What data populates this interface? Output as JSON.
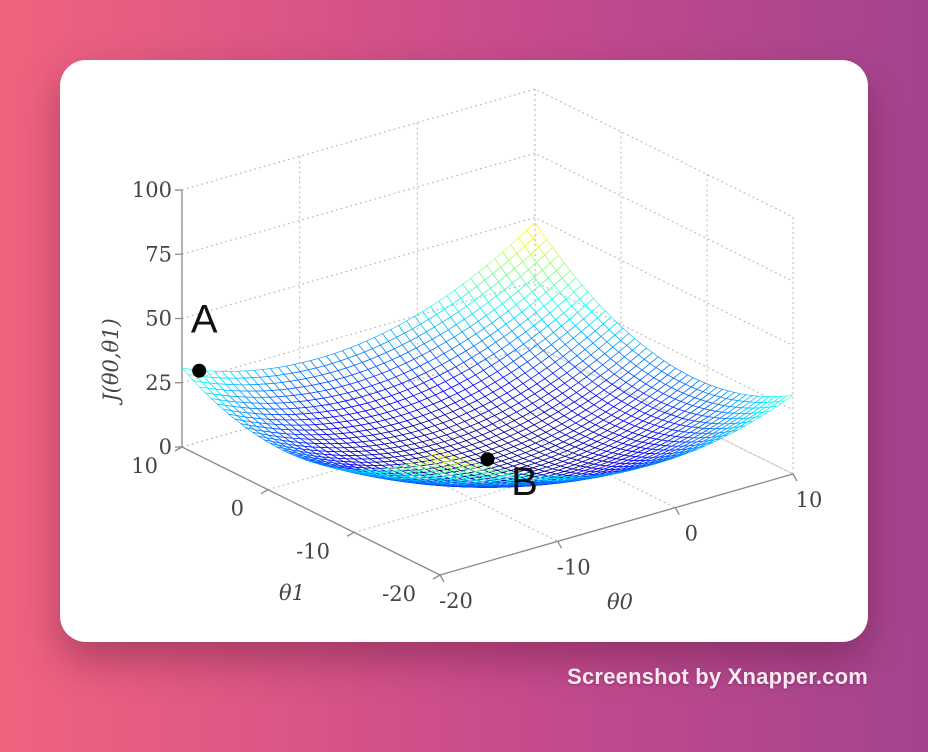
{
  "watermark": "Screenshot by Xnapper.com",
  "chart_data": {
    "type": "surface",
    "zlabel": "J(θ0,θ1)",
    "xlabel": "θ0",
    "ylabel": "θ1",
    "x_ticks": [
      "-20",
      "-10",
      "0",
      "10"
    ],
    "y_ticks": [
      "-20",
      "-10",
      "0",
      "10"
    ],
    "z_ticks": [
      "0",
      "25",
      "50",
      "75",
      "100"
    ],
    "xlim": [
      -20,
      10
    ],
    "ylim": [
      -20,
      10
    ],
    "zlim": [
      0,
      100
    ],
    "grid": true,
    "colormap": "jet",
    "points": [
      {
        "label": "A",
        "x": -20,
        "y": 8,
        "z": 33
      },
      {
        "label": "B",
        "x": -5,
        "y": -5,
        "z": 0
      }
    ]
  }
}
